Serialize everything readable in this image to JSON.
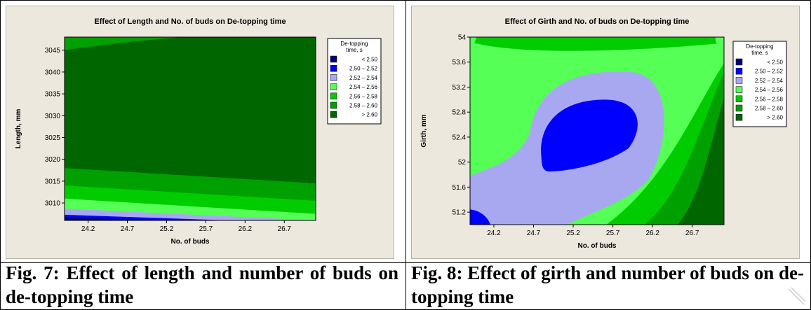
{
  "charts": [
    {
      "title": "Effect of Length and No. of buds on De-topping time",
      "xlabel": "No. of buds",
      "ylabel": "Length, mm",
      "caption": "Fig. 7: Effect of length and number of buds on de-topping time"
    },
    {
      "title": "Effect of Girth and No. of buds on De-topping time",
      "xlabel": "No. of buds",
      "ylabel": "Girth, mm",
      "caption": "Fig. 8: Effect of girth and number of buds on de-topping time"
    }
  ],
  "legend": {
    "title_line1": "De-topping",
    "title_line2": "time, s",
    "entries": [
      {
        "range": "<   2.50",
        "color": "#00007a"
      },
      {
        "range": "2.50  –   2.52",
        "color": "#0000ff"
      },
      {
        "range": "2.52  –   2.54",
        "color": "#a8a8f0"
      },
      {
        "range": "2.54  –   2.56",
        "color": "#55ff55"
      },
      {
        "range": "2.56  –   2.58",
        "color": "#00cc00"
      },
      {
        "range": "2.58  –   2.60",
        "color": "#00a000"
      },
      {
        "range": ">   2.60",
        "color": "#006600"
      }
    ]
  },
  "chart_data": [
    {
      "type": "contour",
      "title": "Effect of Length and No. of buds on De-topping time",
      "xlabel": "No. of buds",
      "ylabel": "Length, mm",
      "xlim": [
        23.9,
        27.1
      ],
      "ylim": [
        3006,
        3048
      ],
      "xticks": [
        24.2,
        24.7,
        25.2,
        25.7,
        26.2,
        26.7
      ],
      "yticks": [
        3010,
        3015,
        3020,
        3025,
        3030,
        3035,
        3040,
        3045
      ],
      "levels": [
        "< 2.50",
        "2.50 – 2.52",
        "2.52 – 2.54",
        "2.54 – 2.56",
        "2.56 – 2.58",
        "2.58 – 2.60",
        "> 2.60"
      ],
      "region_boundaries": [
        {
          "upper_level": "> 2.60",
          "y_at_x": [
            [
              23.9,
              3018
            ],
            [
              27.1,
              3014.5
            ]
          ]
        },
        {
          "upper_level": "2.58 – 2.60",
          "y_at_x": [
            [
              23.9,
              3014
            ],
            [
              27.1,
              3010.5
            ]
          ]
        },
        {
          "upper_level": "2.56 – 2.58",
          "y_at_x": [
            [
              23.9,
              3011
            ],
            [
              27.1,
              3007.5
            ]
          ]
        },
        {
          "upper_level": "2.54 – 2.56",
          "y_at_x": [
            [
              23.9,
              3008.7
            ],
            [
              27.1,
              3006
            ]
          ]
        },
        {
          "upper_level": "2.52 – 2.54",
          "y_at_x": [
            [
              23.9,
              3007.3
            ],
            [
              26.0,
              3006
            ]
          ]
        },
        {
          "upper_level": "2.50 – 2.52",
          "y_at_x": [
            [
              23.9,
              3006.7
            ],
            [
              25.2,
              3006
            ]
          ]
        }
      ],
      "top_band": {
        "level": "2.58 – 2.60",
        "y_at_x": [
          [
            23.9,
            3045
          ],
          [
            25.4,
            3048
          ]
        ]
      }
    },
    {
      "type": "contour",
      "title": "Effect of Girth and No. of buds on De-topping time",
      "xlabel": "No. of buds",
      "ylabel": "Girth, mm",
      "xlim": [
        23.9,
        27.1
      ],
      "ylim": [
        51.0,
        54.0
      ],
      "xticks": [
        24.2,
        24.7,
        25.2,
        25.7,
        26.2,
        26.7
      ],
      "yticks": [
        51.2,
        51.6,
        52.0,
        52.4,
        52.8,
        53.2,
        53.6,
        54.0
      ],
      "levels": [
        "< 2.50",
        "2.50 – 2.52",
        "2.52 – 2.54",
        "2.54 – 2.56",
        "2.56 – 2.58",
        "2.58 – 2.60",
        "> 2.60"
      ],
      "min_region": {
        "level": "2.50 – 2.52",
        "center": [
          25.4,
          52.45
        ],
        "x_extent": [
          24.8,
          26.0
        ],
        "y_extent": [
          51.9,
          53.0
        ]
      },
      "corner_minimum": {
        "level": "2.50 – 2.52",
        "location": [
          23.9,
          51.0
        ]
      }
    }
  ]
}
